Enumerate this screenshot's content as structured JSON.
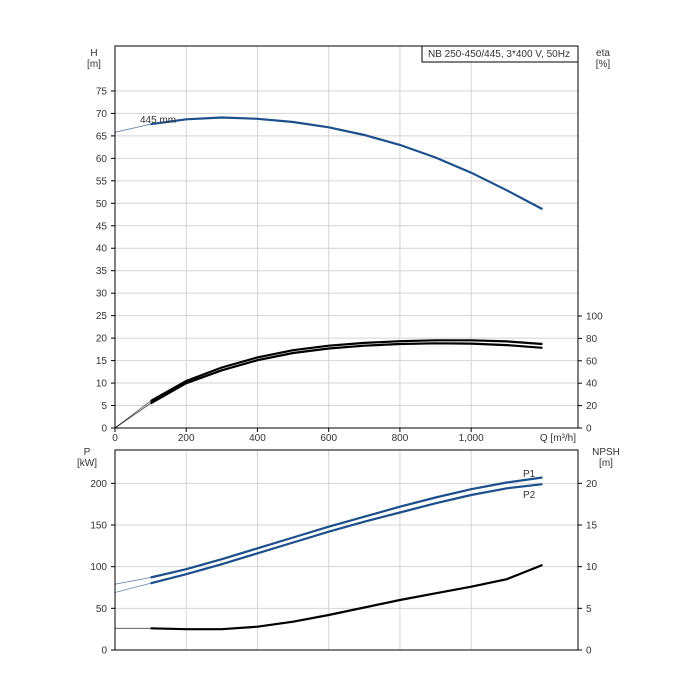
{
  "chart_data": [
    {
      "type": "line",
      "panel": "head",
      "title": "NB 250-450/445, 3*400 V, 50Hz",
      "ylabel": "H\n[m]",
      "y2label": "eta\n[%]",
      "xlabel": "Q [m³/h]",
      "xlim": [
        0,
        1300
      ],
      "x_ticks": [
        0,
        200,
        400,
        600,
        800,
        1000
      ],
      "x_tick_labels": [
        "0",
        "200",
        "400",
        "600",
        "800",
        "1,000"
      ],
      "ylim": [
        0,
        85
      ],
      "y_ticks": [
        0,
        5,
        10,
        15,
        20,
        25,
        30,
        35,
        40,
        45,
        50,
        55,
        60,
        65,
        70,
        75
      ],
      "y2lim": [
        0,
        100
      ],
      "y2_ticks": [
        0,
        20,
        40,
        60,
        80,
        100
      ],
      "grid": true,
      "annotations": [
        {
          "text": "445 mm",
          "x": 125,
          "y": 68
        }
      ],
      "series": [
        {
          "name": "",
          "axis": "left",
          "color": "#1c4f8c",
          "x": [
            0,
            100,
            200,
            300,
            400,
            500,
            600,
            700,
            800,
            900,
            1000,
            1100,
            1200
          ],
          "y": [
            65.8,
            67.6,
            68.7,
            69.1,
            68.8,
            68.1,
            66.9,
            65.2,
            63.0,
            60.2,
            56.8,
            52.9,
            48.7
          ]
        },
        {
          "name": "",
          "axis": "right",
          "color": "#000000",
          "x": [
            0,
            100,
            200,
            300,
            400,
            500,
            600,
            700,
            800,
            900,
            1000,
            1100,
            1200
          ],
          "y": [
            0,
            24,
            42,
            54,
            63,
            69.5,
            73.5,
            76,
            77.5,
            78.3,
            78.3,
            77.3,
            75
          ]
        },
        {
          "name": "",
          "axis": "right",
          "color": "#000000",
          "x": [
            0,
            100,
            200,
            300,
            400,
            500,
            600,
            700,
            800,
            900,
            1000,
            1100,
            1200
          ],
          "y": [
            0,
            22,
            40,
            51.5,
            60.5,
            67,
            71,
            73.5,
            75,
            75.6,
            75.4,
            74,
            71.6
          ]
        }
      ]
    },
    {
      "type": "line",
      "panel": "power",
      "ylabel": "P\n[kW]",
      "y2label": "NPSH\n[m]",
      "xlim": [
        0,
        1300
      ],
      "ylim": [
        0,
        240
      ],
      "y_ticks": [
        0,
        50,
        100,
        150,
        200
      ],
      "y2lim": [
        0,
        24
      ],
      "y2_ticks": [
        0,
        5,
        10,
        15,
        20
      ],
      "grid": true,
      "series": [
        {
          "name": "P1",
          "axis": "left",
          "color": "#1c4f8c",
          "x": [
            0,
            100,
            200,
            300,
            400,
            500,
            600,
            700,
            800,
            900,
            1000,
            1100,
            1200
          ],
          "y": [
            79,
            87,
            97,
            109,
            122,
            135,
            148,
            160,
            172,
            183,
            193,
            201,
            207
          ]
        },
        {
          "name": "P2",
          "axis": "left",
          "color": "#1c4f8c",
          "x": [
            0,
            100,
            200,
            300,
            400,
            500,
            600,
            700,
            800,
            900,
            1000,
            1100,
            1200
          ],
          "y": [
            69,
            80,
            91,
            103,
            116,
            129,
            142,
            154,
            165,
            176,
            186,
            194,
            199
          ]
        },
        {
          "name": "",
          "axis": "right",
          "color": "#000000",
          "x": [
            0,
            100,
            200,
            300,
            400,
            500,
            600,
            700,
            800,
            900,
            1000,
            1100,
            1200
          ],
          "y": [
            2.6,
            2.6,
            2.5,
            2.5,
            2.8,
            3.4,
            4.2,
            5.1,
            6.0,
            6.8,
            7.6,
            8.5,
            10.2
          ]
        }
      ]
    }
  ]
}
